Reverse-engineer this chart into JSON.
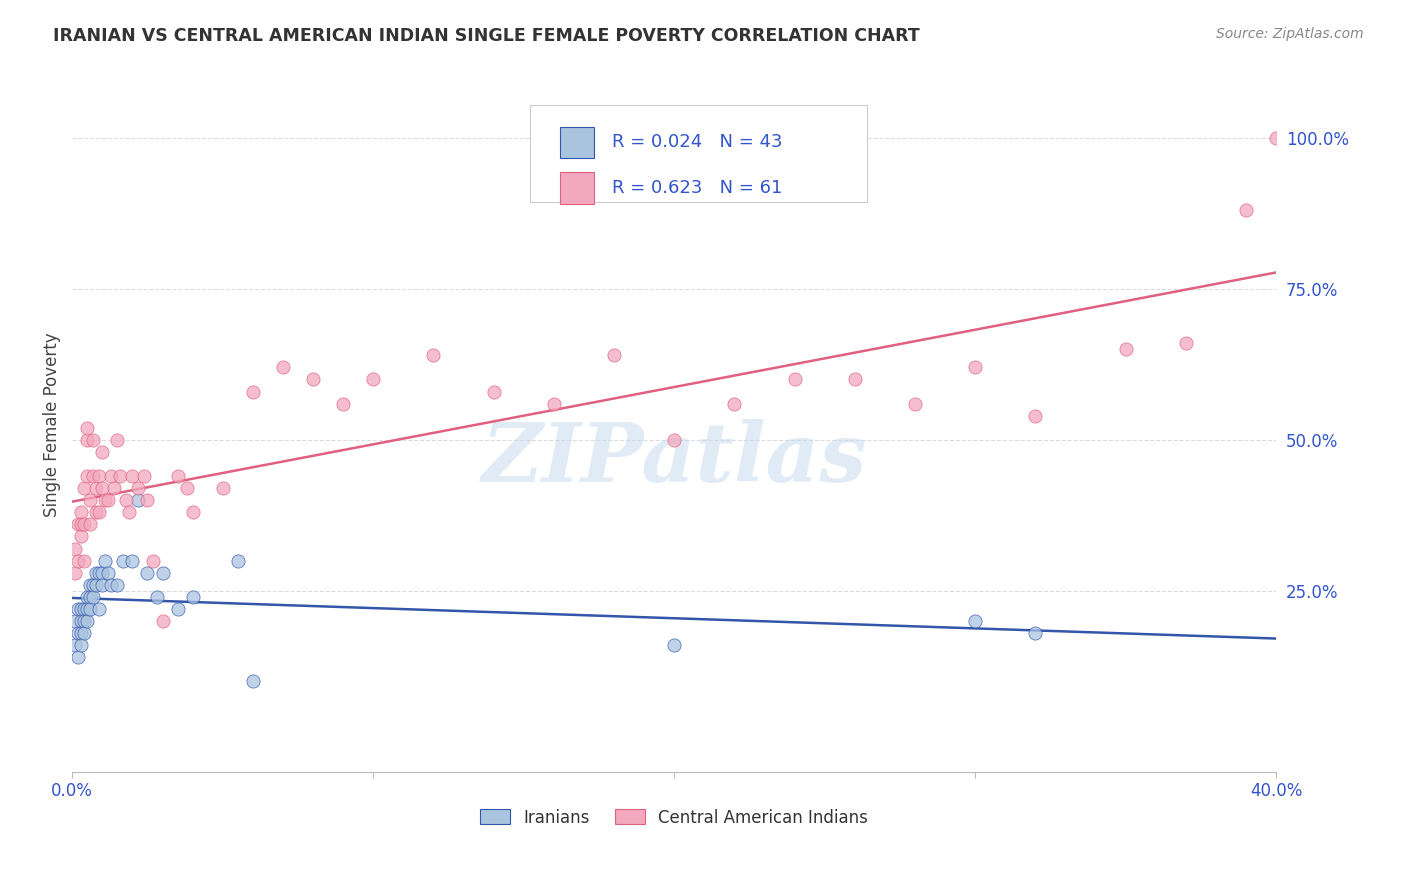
{
  "title": "IRANIAN VS CENTRAL AMERICAN INDIAN SINGLE FEMALE POVERTY CORRELATION CHART",
  "source": "Source: ZipAtlas.com",
  "ylabel": "Single Female Poverty",
  "xmin": 0.0,
  "xmax": 0.4,
  "ymin": -0.05,
  "ymax": 1.1,
  "watermark": "ZIPatlas",
  "legend_label1": "Iranians",
  "legend_label2": "Central American Indians",
  "R1": 0.024,
  "N1": 43,
  "R2": 0.623,
  "N2": 61,
  "color_iranian": "#aac4e0",
  "color_central": "#f2a8bf",
  "color_iranian_line": "#3355aa",
  "color_central_line": "#e06080",
  "color_text_blue": "#3355cc",
  "iranians_x": [
    0.001,
    0.001,
    0.002,
    0.002,
    0.002,
    0.003,
    0.003,
    0.003,
    0.003,
    0.004,
    0.004,
    0.004,
    0.005,
    0.005,
    0.005,
    0.006,
    0.006,
    0.006,
    0.007,
    0.007,
    0.008,
    0.008,
    0.009,
    0.009,
    0.01,
    0.01,
    0.011,
    0.012,
    0.013,
    0.015,
    0.017,
    0.02,
    0.022,
    0.025,
    0.028,
    0.03,
    0.035,
    0.04,
    0.055,
    0.06,
    0.2,
    0.3,
    0.32
  ],
  "iranians_y": [
    0.2,
    0.16,
    0.22,
    0.18,
    0.14,
    0.22,
    0.2,
    0.18,
    0.16,
    0.22,
    0.2,
    0.18,
    0.24,
    0.22,
    0.2,
    0.26,
    0.24,
    0.22,
    0.26,
    0.24,
    0.28,
    0.26,
    0.28,
    0.22,
    0.28,
    0.26,
    0.3,
    0.28,
    0.26,
    0.26,
    0.3,
    0.3,
    0.4,
    0.28,
    0.24,
    0.28,
    0.22,
    0.24,
    0.3,
    0.1,
    0.16,
    0.2,
    0.18
  ],
  "central_x": [
    0.001,
    0.001,
    0.002,
    0.002,
    0.003,
    0.003,
    0.003,
    0.004,
    0.004,
    0.004,
    0.005,
    0.005,
    0.005,
    0.006,
    0.006,
    0.007,
    0.007,
    0.008,
    0.008,
    0.009,
    0.009,
    0.01,
    0.01,
    0.011,
    0.012,
    0.013,
    0.014,
    0.015,
    0.016,
    0.018,
    0.019,
    0.02,
    0.022,
    0.024,
    0.025,
    0.027,
    0.03,
    0.035,
    0.038,
    0.04,
    0.05,
    0.06,
    0.07,
    0.08,
    0.09,
    0.1,
    0.12,
    0.14,
    0.16,
    0.18,
    0.2,
    0.22,
    0.24,
    0.26,
    0.28,
    0.3,
    0.32,
    0.35,
    0.37,
    0.39,
    0.4
  ],
  "central_y": [
    0.28,
    0.32,
    0.3,
    0.36,
    0.38,
    0.34,
    0.36,
    0.3,
    0.36,
    0.42,
    0.44,
    0.5,
    0.52,
    0.36,
    0.4,
    0.44,
    0.5,
    0.38,
    0.42,
    0.38,
    0.44,
    0.42,
    0.48,
    0.4,
    0.4,
    0.44,
    0.42,
    0.5,
    0.44,
    0.4,
    0.38,
    0.44,
    0.42,
    0.44,
    0.4,
    0.3,
    0.2,
    0.44,
    0.42,
    0.38,
    0.42,
    0.58,
    0.62,
    0.6,
    0.56,
    0.6,
    0.64,
    0.58,
    0.56,
    0.64,
    0.5,
    0.56,
    0.6,
    0.6,
    0.56,
    0.62,
    0.54,
    0.65,
    0.66,
    0.88,
    1.0
  ]
}
